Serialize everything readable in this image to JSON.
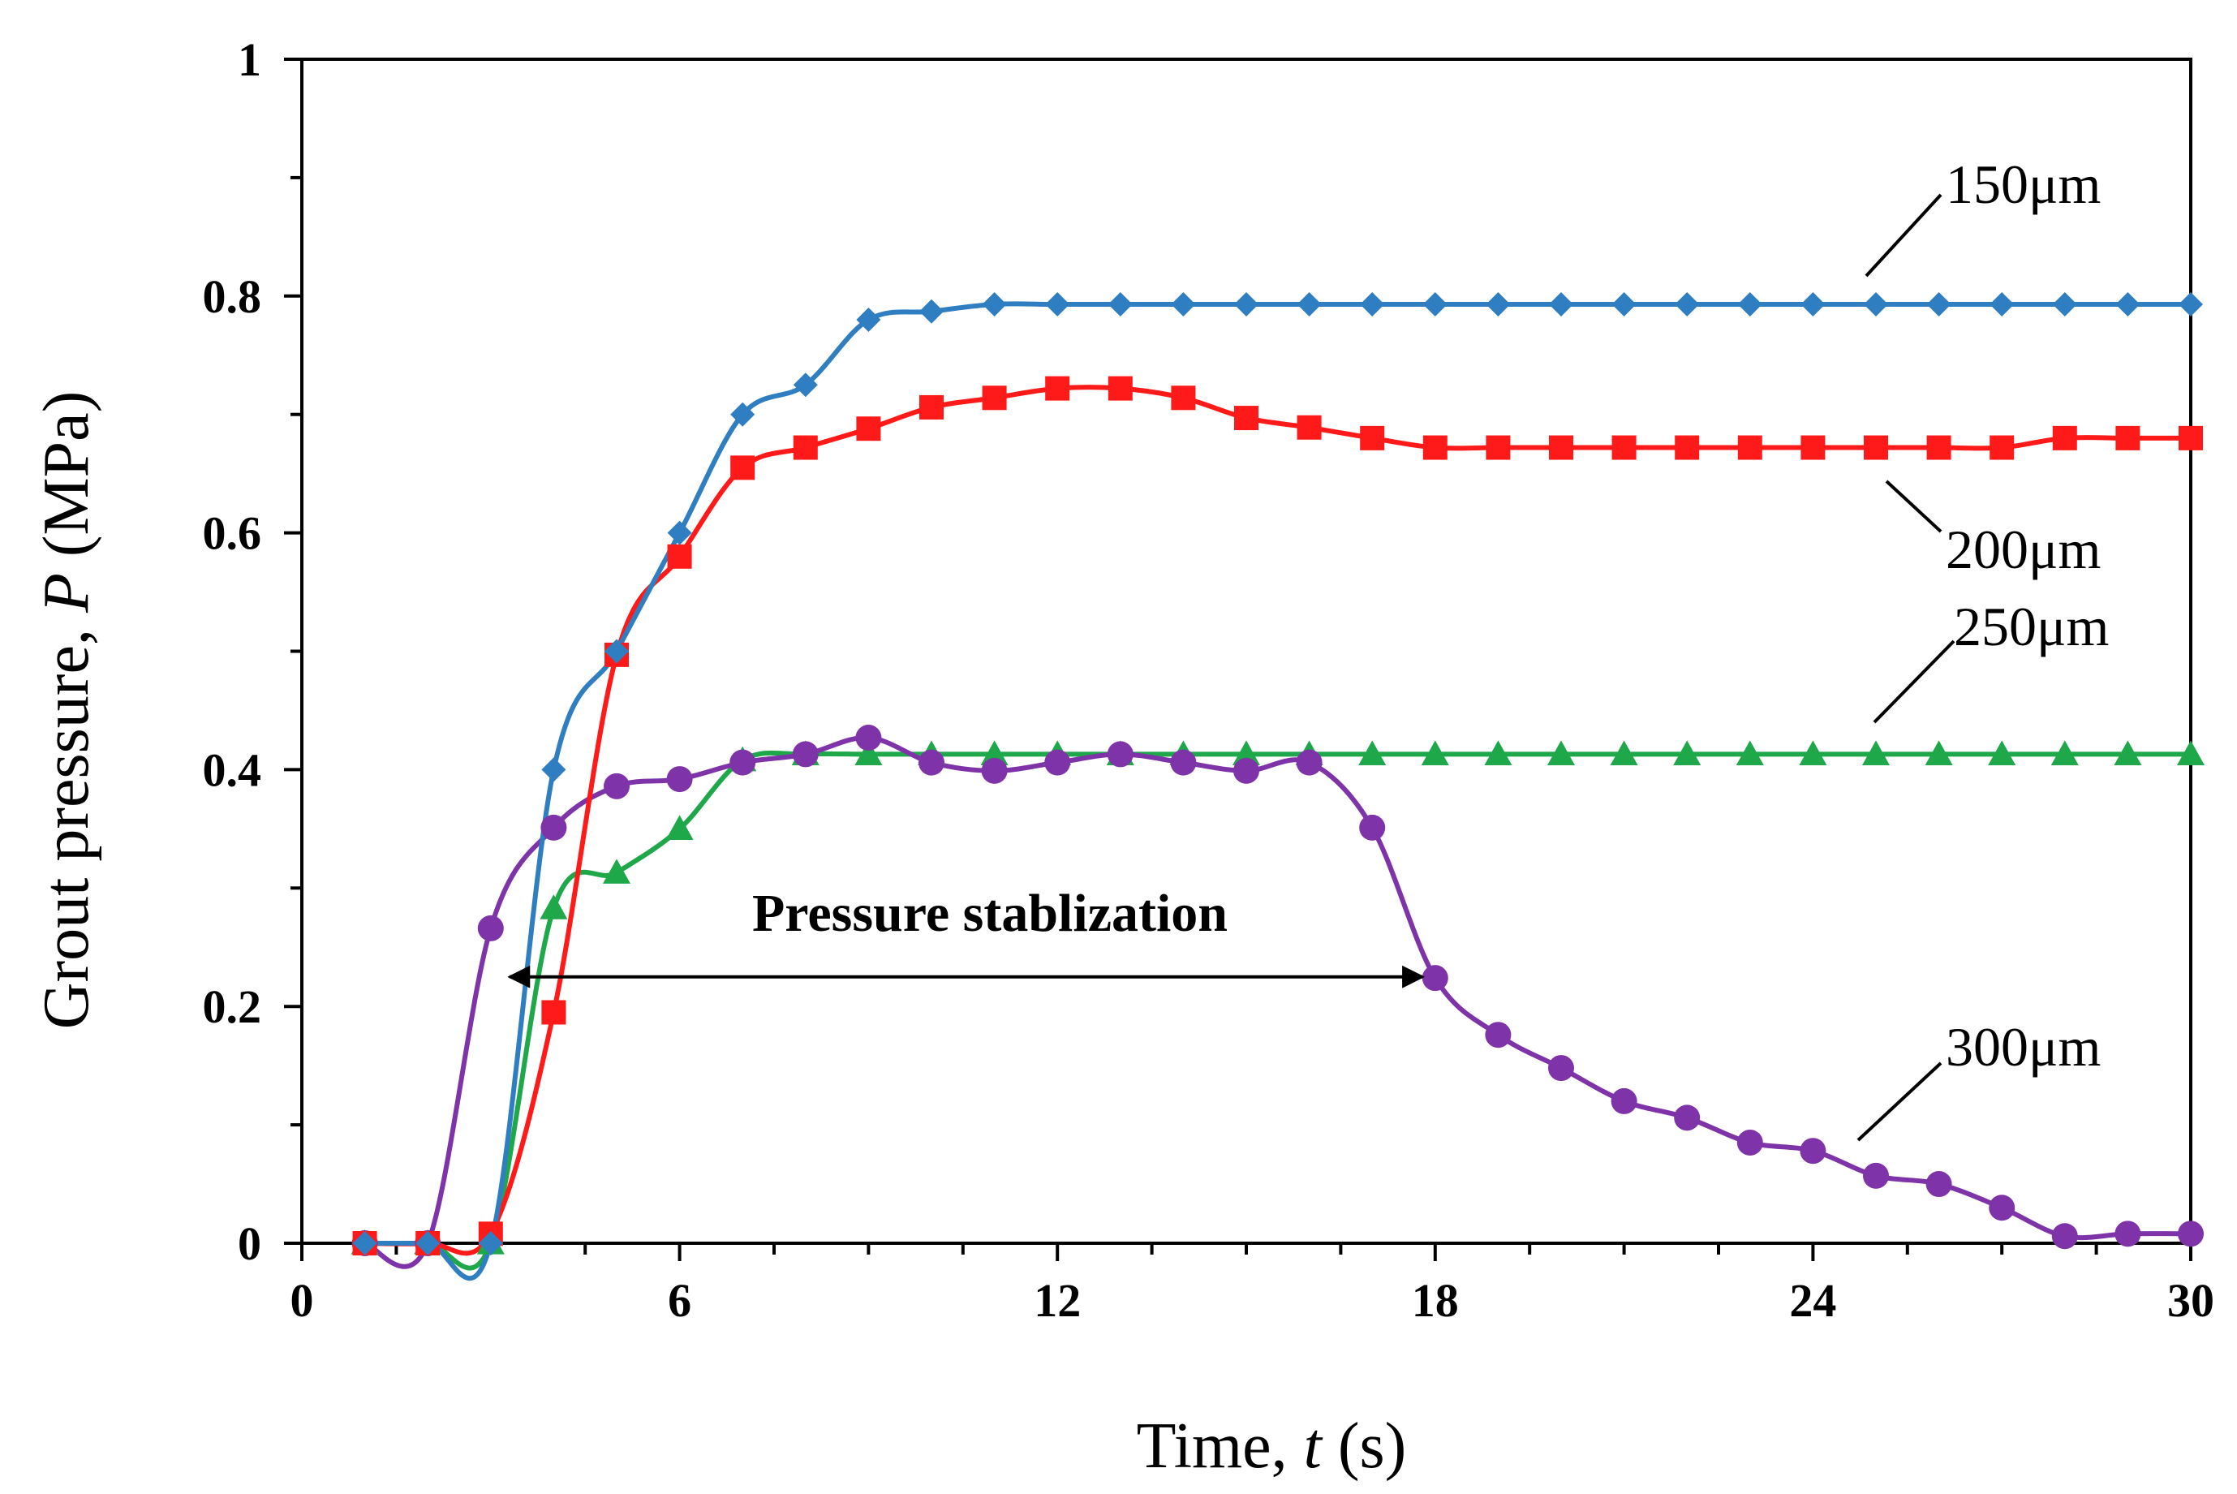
{
  "chart_data": {
    "type": "line",
    "title": "",
    "xlabel": {
      "prefix": "Time, ",
      "var": "t",
      "unit": " (s)"
    },
    "ylabel": {
      "prefix": "Grout pressure, ",
      "var": "P",
      "unit": " (MPa)"
    },
    "xlim": [
      0,
      30
    ],
    "ylim": [
      0,
      1
    ],
    "x_ticks": [
      0,
      6,
      12,
      18,
      24,
      30
    ],
    "x_tick_labels": [
      "0",
      "6",
      "12",
      "18",
      "24",
      "30"
    ],
    "y_ticks": [
      0,
      0.2,
      0.4,
      0.6,
      0.8,
      1
    ],
    "y_tick_labels": [
      "0",
      "0.2",
      "0.4",
      "0.6",
      "0.8",
      "1"
    ],
    "grid": false,
    "legend": "inline labels",
    "x": [
      1,
      2,
      3,
      4,
      5,
      6,
      7,
      8,
      9,
      10,
      11,
      12,
      13,
      14,
      15,
      16,
      17,
      18,
      19,
      20,
      21,
      22,
      23,
      24,
      25,
      26,
      27,
      28,
      29,
      30
    ],
    "series": [
      {
        "name": "150μm",
        "color": "#2E7EC1",
        "marker": "diamond",
        "values": [
          0,
          0,
          0,
          0.4,
          0.5,
          0.6,
          0.7,
          0.725,
          0.78,
          0.787,
          0.793,
          0.793,
          0.793,
          0.793,
          0.793,
          0.793,
          0.793,
          0.793,
          0.793,
          0.793,
          0.793,
          0.793,
          0.793,
          0.793,
          0.793,
          0.793,
          0.793,
          0.793,
          0.793,
          0.793
        ]
      },
      {
        "name": "200μm",
        "color": "#FF1A1A",
        "marker": "square",
        "values": [
          0,
          0,
          0.008,
          0.195,
          0.497,
          0.58,
          0.655,
          0.672,
          0.688,
          0.706,
          0.714,
          0.722,
          0.722,
          0.714,
          0.697,
          0.689,
          0.68,
          0.672,
          0.672,
          0.672,
          0.672,
          0.672,
          0.672,
          0.672,
          0.672,
          0.672,
          0.672,
          0.68,
          0.68,
          0.68
        ]
      },
      {
        "name": "250μm",
        "color": "#1FA84A",
        "marker": "triangle",
        "values": [
          0,
          0,
          0,
          0.283,
          0.313,
          0.35,
          0.408,
          0.413,
          0.413,
          0.413,
          0.413,
          0.413,
          0.413,
          0.413,
          0.413,
          0.413,
          0.413,
          0.413,
          0.413,
          0.413,
          0.413,
          0.413,
          0.413,
          0.413,
          0.413,
          0.413,
          0.413,
          0.413,
          0.413,
          0.413
        ]
      },
      {
        "name": "300μm",
        "color": "#7F33A8",
        "marker": "circle",
        "values": [
          0,
          0,
          0.266,
          0.351,
          0.386,
          0.392,
          0.406,
          0.413,
          0.427,
          0.406,
          0.399,
          0.406,
          0.413,
          0.406,
          0.399,
          0.406,
          0.351,
          0.224,
          0.176,
          0.148,
          0.12,
          0.106,
          0.085,
          0.078,
          0.057,
          0.05,
          0.03,
          0.006,
          0.008,
          0.008
        ]
      }
    ],
    "annotations": {
      "text": "Pressure stablization",
      "arrow_from_x": 3.3,
      "arrow_to_x": 17.8,
      "arrow_y": 0.225
    }
  }
}
